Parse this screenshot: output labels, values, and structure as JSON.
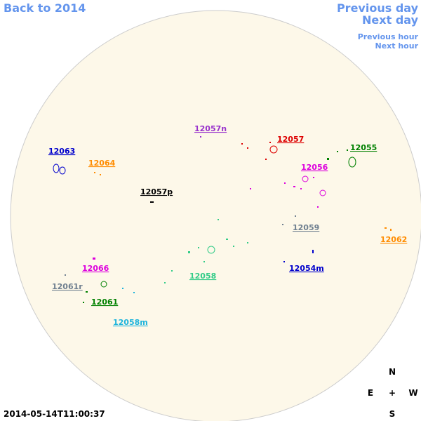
{
  "nav": {
    "back": "Back to 2014",
    "previous_day": "Previous day",
    "next_day": "Next day",
    "previous_hour": "Previous hour",
    "next_hour": "Next hour"
  },
  "regions": [
    {
      "label": "12057n",
      "color": "#9932cc"
    },
    {
      "label": "12057",
      "color": "#dd0000"
    },
    {
      "label": "12055",
      "color": "#008000"
    },
    {
      "label": "12063",
      "color": "#0000cc"
    },
    {
      "label": "12064",
      "color": "#ff8c00"
    },
    {
      "label": "12056",
      "color": "#dd00dd"
    },
    {
      "label": "12057p",
      "color": "#000000"
    },
    {
      "label": "12059",
      "color": "#708090"
    },
    {
      "label": "12062",
      "color": "#ff8c00"
    },
    {
      "label": "12058",
      "color": "#33cc88"
    },
    {
      "label": "12054m",
      "color": "#0000cc"
    },
    {
      "label": "12066",
      "color": "#dd00dd"
    },
    {
      "label": "12061r",
      "color": "#708090"
    },
    {
      "label": "12061",
      "color": "#008000"
    },
    {
      "label": "12058m",
      "color": "#1eb4dc"
    }
  ],
  "compass": {
    "north": "N",
    "east": "E",
    "center": "+",
    "west": "W",
    "south": "S"
  },
  "timestamp": "2014-05-14T11:00:37"
}
